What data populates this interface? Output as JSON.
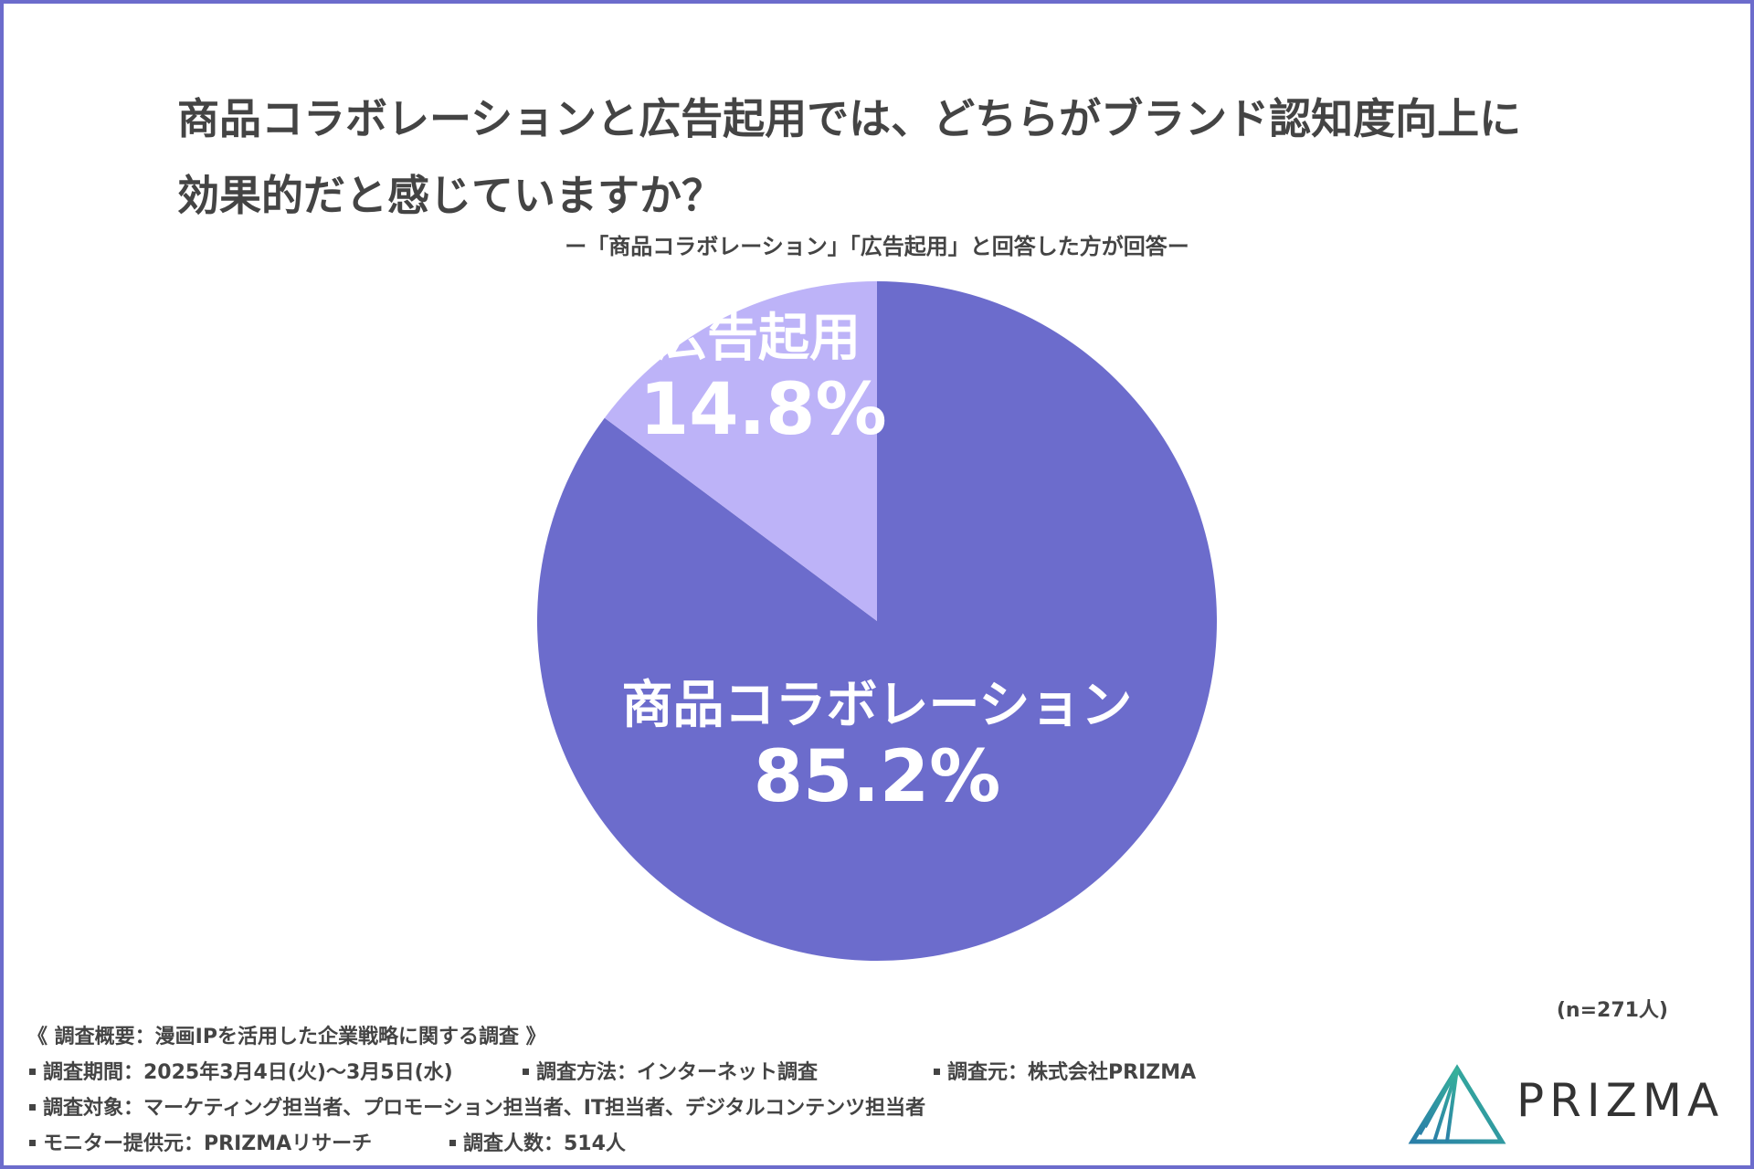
{
  "title_line1": "商品コラボレーションと広告起用では、どちらがブランド認知度向上に",
  "title_line2": "効果的だと感じていますか？",
  "subtitle": "ー「商品コラボレーション」「広告起用」と回答した方が回答ー",
  "chart_data": {
    "type": "pie",
    "categories": [
      "商品コラボレーション",
      "広告起用"
    ],
    "values": [
      85.2,
      14.8
    ],
    "value_labels": [
      "85.2%",
      "14.8%"
    ],
    "colors": [
      "#6c6ccc",
      "#bdb3f8"
    ],
    "start_angle_deg": 0,
    "direction": "clockwise",
    "legend": "none"
  },
  "n_note": "(n=271人)",
  "survey": {
    "heading": "《 調査概要：漫画IPを活用した企業戦略に関する調査 》",
    "period": "調査期間：2025年3月4日(火)〜3月5日(水)",
    "method": "調査方法：インターネット調査",
    "organizer": "調査元：株式会社PRIZMA",
    "target": "調査対象：マーケティング担当者、プロモーション担当者、IT担当者、デジタルコンテンツ担当者",
    "provider": "モニター提供元：PRIZMAリサーチ",
    "respondents": "調査人数：514人"
  },
  "logo": {
    "text": "PRIZMA",
    "icon": "prism-triangle-icon"
  },
  "colors": {
    "frame": "#6c6ccc",
    "text": "#444444"
  }
}
